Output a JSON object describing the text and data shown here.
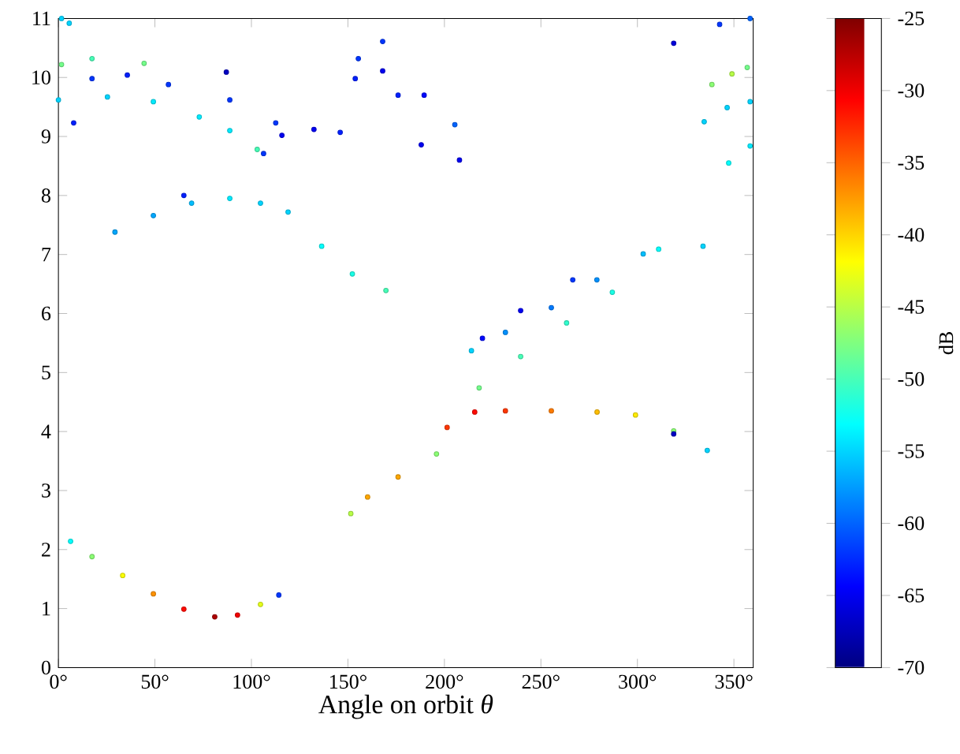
{
  "chart_data": {
    "type": "scatter",
    "xlabel": "Angle on orbit *θ*",
    "clabel": "dB",
    "marker": "circle",
    "xlim": [
      0,
      360
    ],
    "ylim": [
      0,
      11
    ],
    "clim": [
      -70,
      -25
    ],
    "xticks": [
      {
        "value": 0,
        "label": "0°"
      },
      {
        "value": 50,
        "label": "50°"
      },
      {
        "value": 100,
        "label": "100°"
      },
      {
        "value": 150,
        "label": "150°"
      },
      {
        "value": 200,
        "label": "200°"
      },
      {
        "value": 250,
        "label": "250°"
      },
      {
        "value": 300,
        "label": "300°"
      },
      {
        "value": 350,
        "label": "350°"
      }
    ],
    "yticks": [
      0,
      1,
      2,
      3,
      4,
      5,
      6,
      7,
      8,
      9,
      10,
      11
    ],
    "cticks": [
      -70,
      -65,
      -60,
      -55,
      -50,
      -45,
      -40,
      -35,
      -30,
      -25
    ],
    "x": [
      6.3,
      17.4,
      33.3,
      49.2,
      65,
      81,
      92.8,
      104.7,
      114.2,
      151.5,
      160.2,
      176,
      195.9,
      201.4,
      215.7,
      231.6,
      255.4,
      279.1,
      299,
      318.8,
      336.2,
      318.8,
      218,
      239.5,
      263.3,
      287,
      214,
      231.6,
      255.4,
      279,
      303,
      311,
      334,
      219.7,
      239.5,
      266.5,
      29.3,
      49.2,
      69,
      88.8,
      104.7,
      119,
      136.4,
      152.3,
      169.7,
      65,
      106.3,
      0,
      25.4,
      49.2,
      73,
      88.8,
      103,
      1.6,
      17.4,
      44.4,
      7.9,
      35.7,
      17.4,
      57,
      88.8,
      112.6,
      115.8,
      132.4,
      146,
      87,
      155.4,
      168,
      153.8,
      176,
      205.4,
      168,
      189.5,
      188,
      207.8,
      318.8,
      342.6,
      358.4,
      338.6,
      349,
      356.9,
      334.6,
      346.5,
      358.4,
      347.3,
      358.4,
      1.6,
      5.6
    ],
    "values": [
      2.14,
      1.88,
      1.56,
      1.25,
      0.99,
      0.86,
      0.89,
      1.07,
      1.23,
      2.61,
      2.89,
      3.23,
      3.62,
      4.07,
      4.33,
      4.35,
      4.35,
      4.33,
      4.28,
      4.01,
      3.68,
      3.96,
      4.74,
      5.27,
      5.84,
      6.36,
      5.37,
      5.68,
      6.1,
      6.57,
      7.01,
      7.09,
      7.14,
      5.58,
      6.05,
      6.57,
      7.38,
      7.66,
      7.87,
      7.95,
      7.87,
      7.72,
      7.14,
      6.67,
      6.39,
      8.0,
      8.71,
      9.62,
      9.67,
      9.59,
      9.33,
      9.1,
      8.78,
      10.22,
      10.32,
      10.24,
      9.23,
      10.04,
      9.98,
      9.88,
      9.62,
      9.23,
      9.02,
      9.12,
      9.07,
      10.09,
      10.32,
      10.61,
      9.98,
      9.7,
      9.2,
      10.11,
      9.7,
      8.86,
      8.6,
      10.58,
      10.9,
      11.0,
      9.88,
      10.06,
      10.17,
      9.25,
      9.49,
      9.59,
      8.55,
      8.84,
      11.0,
      10.92
    ],
    "cvalues": [
      -53,
      -47,
      -42,
      -37,
      -31,
      -27,
      -30,
      -43,
      -62,
      -45,
      -38,
      -38,
      -47,
      -33,
      -31,
      -33,
      -36,
      -39,
      -41,
      -47,
      -55,
      -67,
      -48,
      -50,
      -51,
      -52,
      -55,
      -58,
      -59,
      -58,
      -56,
      -53,
      -55,
      -64,
      -65,
      -62,
      -57,
      -57,
      -56,
      -54,
      -55,
      -55,
      -53,
      -52,
      -50,
      -63,
      -62,
      -55,
      -55,
      -54,
      -54,
      -54,
      -50,
      -48,
      -50,
      -48,
      -63,
      -63,
      -62,
      -62,
      -62,
      -62,
      -65,
      -65,
      -63,
      -67,
      -62,
      -62,
      -63,
      -63,
      -60,
      -65,
      -64,
      -65,
      -65,
      -66,
      -62,
      -60,
      -47,
      -45,
      -48,
      -55,
      -55,
      -55,
      -53,
      -54,
      -55,
      -55
    ]
  }
}
